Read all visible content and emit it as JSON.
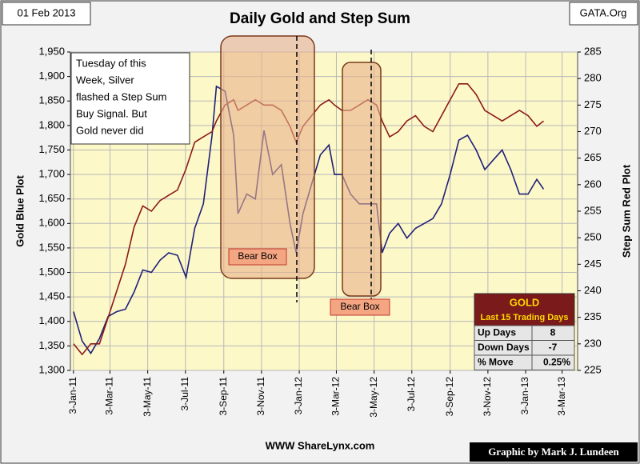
{
  "chart_data": {
    "type": "line",
    "title": "Daily Gold and Step Sum",
    "date_label": "01 Feb 2013",
    "source_label": "GATA.Org",
    "footer": "WWW ShareLynx.com",
    "credit": "Graphic by Mark J. Lundeen",
    "y_label": "Gold Blue Plot",
    "y2_label": "Step Sum Red Plot",
    "note_lines": [
      "Tuesday of this",
      "Week, Silver",
      "flashed a Step Sum",
      "Buy Signal.  But",
      "Gold never did"
    ],
    "bear_boxes": [
      "Bear Box",
      "Bear Box"
    ],
    "stats": {
      "title": "GOLD",
      "subtitle": "Last 15 Trading Days",
      "rows": [
        [
          "Up Days",
          "8"
        ],
        [
          "Down Days",
          "-7"
        ],
        [
          "% Move",
          "0.25%"
        ]
      ]
    },
    "x": [
      "2011-01-03",
      "2011-01-17",
      "2011-01-31",
      "2011-02-14",
      "2011-02-28",
      "2011-03-14",
      "2011-03-28",
      "2011-04-11",
      "2011-04-25",
      "2011-05-09",
      "2011-05-23",
      "2011-06-06",
      "2011-06-20",
      "2011-07-04",
      "2011-07-18",
      "2011-08-01",
      "2011-08-15",
      "2011-08-22",
      "2011-09-05",
      "2011-09-19",
      "2011-09-26",
      "2011-10-10",
      "2011-10-24",
      "2011-11-07",
      "2011-11-21",
      "2011-12-05",
      "2011-12-19",
      "2011-12-29",
      "2012-01-09",
      "2012-01-23",
      "2012-02-06",
      "2012-02-20",
      "2012-02-29",
      "2012-03-12",
      "2012-03-26",
      "2012-04-09",
      "2012-04-23",
      "2012-05-07",
      "2012-05-16",
      "2012-05-28",
      "2012-06-11",
      "2012-06-25",
      "2012-07-09",
      "2012-07-23",
      "2012-08-06",
      "2012-08-20",
      "2012-09-03",
      "2012-09-17",
      "2012-10-01",
      "2012-10-15",
      "2012-10-29",
      "2012-11-12",
      "2012-11-26",
      "2012-12-10",
      "2012-12-24",
      "2013-01-07",
      "2013-01-21",
      "2013-02-01"
    ],
    "series": [
      {
        "name": "Gold",
        "color": "#1f1f7a",
        "values": [
          1420,
          1360,
          1335,
          1365,
          1410,
          1420,
          1425,
          1460,
          1505,
          1500,
          1525,
          1540,
          1535,
          1490,
          1590,
          1640,
          1780,
          1880,
          1870,
          1780,
          1620,
          1660,
          1650,
          1790,
          1700,
          1720,
          1600,
          1540,
          1620,
          1680,
          1740,
          1760,
          1700,
          1700,
          1660,
          1640,
          1640,
          1640,
          1540,
          1580,
          1600,
          1570,
          1590,
          1600,
          1610,
          1640,
          1700,
          1770,
          1780,
          1750,
          1710,
          1730,
          1750,
          1710,
          1660,
          1660,
          1690,
          1670
        ]
      },
      {
        "name": "Step Sum",
        "color": "#8b1a1a",
        "axis": "y2",
        "values": [
          230,
          228,
          230,
          230,
          235,
          240,
          245,
          252,
          256,
          255,
          257,
          258,
          259,
          263,
          268,
          269,
          270,
          272,
          275,
          276,
          274,
          275,
          276,
          275,
          275,
          274,
          271,
          268,
          271,
          273,
          275,
          276,
          275,
          274,
          274,
          275,
          276,
          275,
          272,
          269,
          270,
          272,
          273,
          271,
          270,
          273,
          276,
          279,
          279,
          277,
          274,
          273,
          272,
          273,
          274,
          273,
          271,
          272
        ]
      }
    ],
    "xlim": [
      "2010-12-29",
      "2013-03-28"
    ],
    "xticks": [
      {
        "value": "2011-01-03",
        "label": "3-Jan-11"
      },
      {
        "value": "2011-03-03",
        "label": "3-Mar-11"
      },
      {
        "value": "2011-05-03",
        "label": "3-May-11"
      },
      {
        "value": "2011-07-03",
        "label": "3-Jul-11"
      },
      {
        "value": "2011-09-03",
        "label": "3-Sep-11"
      },
      {
        "value": "2011-11-03",
        "label": "3-Nov-11"
      },
      {
        "value": "2012-01-03",
        "label": "3-Jan-12"
      },
      {
        "value": "2012-03-03",
        "label": "3-Mar-12"
      },
      {
        "value": "2012-05-03",
        "label": "3-May-12"
      },
      {
        "value": "2012-07-03",
        "label": "3-Jul-12"
      },
      {
        "value": "2012-09-03",
        "label": "3-Sep-12"
      },
      {
        "value": "2012-11-03",
        "label": "3-Nov-12"
      },
      {
        "value": "2013-01-03",
        "label": "3-Jan-13"
      },
      {
        "value": "2013-03-03",
        "label": "3-Mar-13"
      }
    ],
    "ylim": [
      1300,
      1950
    ],
    "yticks": [
      {
        "value": 1300,
        "label": "1,300"
      },
      {
        "value": 1350,
        "label": "1,350"
      },
      {
        "value": 1400,
        "label": "1,400"
      },
      {
        "value": 1450,
        "label": "1,450"
      },
      {
        "value": 1500,
        "label": "1,500"
      },
      {
        "value": 1550,
        "label": "1,550"
      },
      {
        "value": 1600,
        "label": "1,600"
      },
      {
        "value": 1650,
        "label": "1,650"
      },
      {
        "value": 1700,
        "label": "1,700"
      },
      {
        "value": 1750,
        "label": "1,750"
      },
      {
        "value": 1800,
        "label": "1,800"
      },
      {
        "value": 1850,
        "label": "1,850"
      },
      {
        "value": 1900,
        "label": "1,900"
      },
      {
        "value": 1950,
        "label": "1,950"
      }
    ],
    "y2lim": [
      225,
      285
    ],
    "y2ticks": [
      225,
      230,
      235,
      240,
      245,
      250,
      255,
      260,
      265,
      270,
      275,
      280,
      285
    ],
    "grid": true
  }
}
